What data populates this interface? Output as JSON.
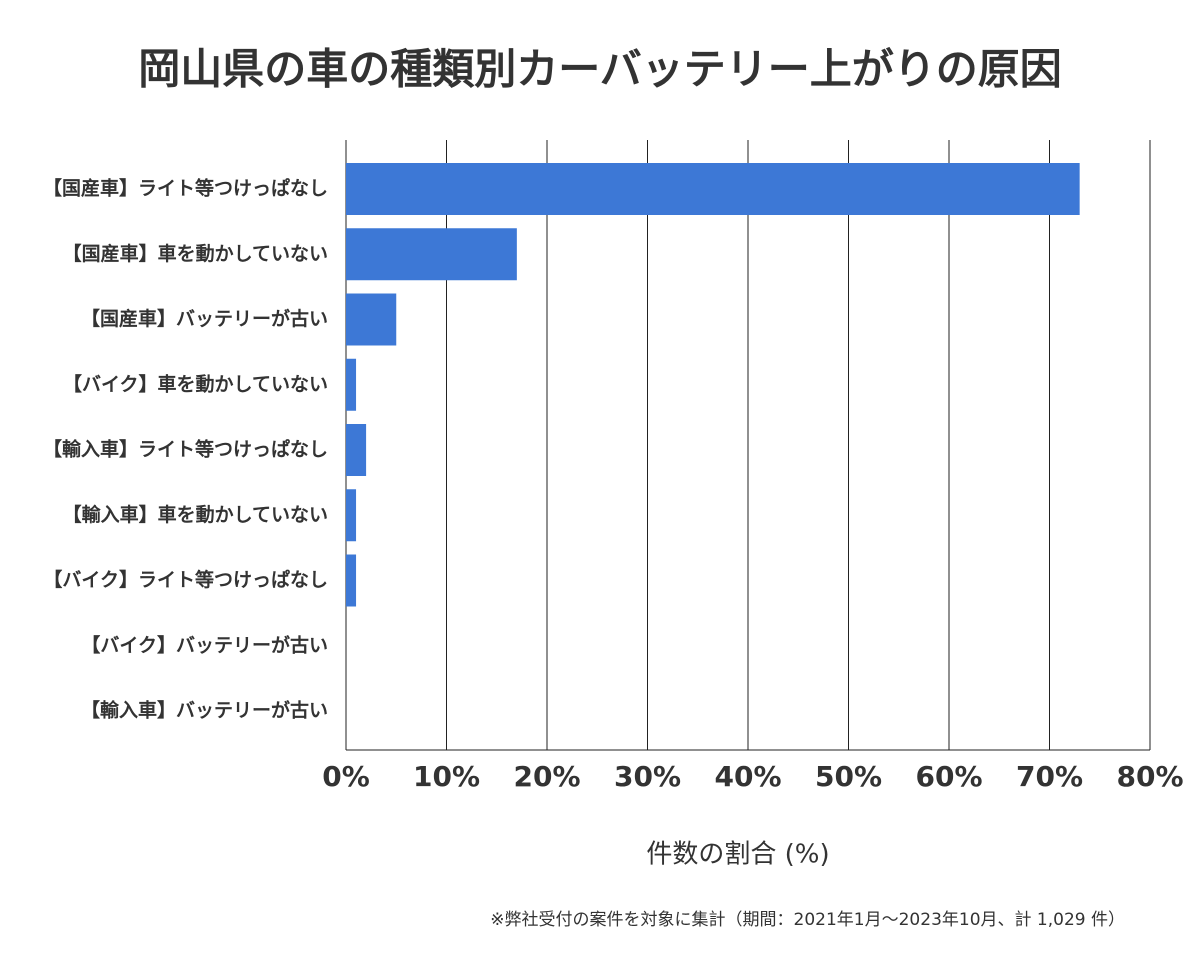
{
  "chart_data": {
    "type": "bar",
    "orientation": "horizontal",
    "title": "岡山県の車の種類別カーバッテリー上がりの原因",
    "x_label": "件数の割合 (%)",
    "footnote": "※弊社受付の案件を対象に集計（期間：2021年1月～2023年10月、計 1,029 件）",
    "categories": [
      "【国産車】ライト等つけっぱなし",
      "【国産車】車を動かしていない",
      "【国産車】バッテリーが古い",
      "【バイク】車を動かしていない",
      "【輸入車】ライト等つけっぱなし",
      "【輸入車】車を動かしていない",
      "【バイク】ライト等つけっぱなし",
      "【バイク】バッテリーが古い",
      "【輸入車】バッテリーが古い"
    ],
    "values": [
      73,
      17,
      5,
      1,
      2,
      1,
      1,
      0,
      0
    ],
    "color": "#3d78d6",
    "xlim": [
      0,
      80
    ],
    "xticks": [
      {
        "value": 0,
        "label": "0%"
      },
      {
        "value": 10,
        "label": "10%"
      },
      {
        "value": 20,
        "label": "20%"
      },
      {
        "value": 30,
        "label": "30%"
      },
      {
        "value": 40,
        "label": "40%"
      },
      {
        "value": 50,
        "label": "50%"
      },
      {
        "value": 60,
        "label": "60%"
      },
      {
        "value": 70,
        "label": "70%"
      },
      {
        "value": 80,
        "label": "80%"
      }
    ],
    "grid": true
  }
}
